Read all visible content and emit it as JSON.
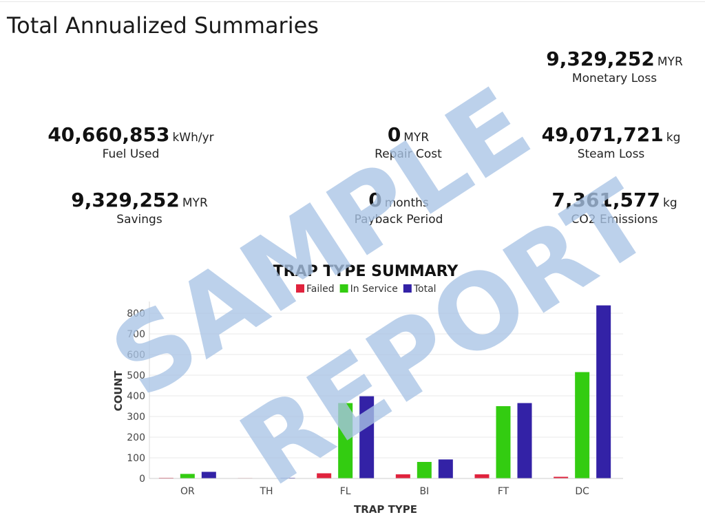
{
  "title": "Total Annualized Summaries",
  "stats": {
    "monetary_loss": {
      "value": "9,329,252",
      "unit": "MYR",
      "label": "Monetary Loss"
    },
    "fuel_used": {
      "value": "40,660,853",
      "unit": "kWh/yr",
      "label": "Fuel Used"
    },
    "repair_cost": {
      "value": "0",
      "unit": "MYR",
      "label": "Repair Cost"
    },
    "steam_loss": {
      "value": "49,071,721",
      "unit": "kg",
      "label": "Steam Loss"
    },
    "savings": {
      "value": "9,329,252",
      "unit": "MYR",
      "label": "Savings"
    },
    "payback_period": {
      "value": "0",
      "unit": "months",
      "label": "Payback Period"
    },
    "co2_emissions": {
      "value": "7,361,577",
      "unit": "kg",
      "label": "CO2 Emissions"
    }
  },
  "watermark": {
    "line1": "SAMPLE",
    "line2": "REPORT",
    "color": "#a9c4e6"
  },
  "chart_data": {
    "type": "bar",
    "title": "TRAP TYPE SUMMARY",
    "xlabel": "TRAP TYPE",
    "ylabel": "COUNT",
    "categories": [
      "OR",
      "TH",
      "FL",
      "BI",
      "FT",
      "DC"
    ],
    "series": [
      {
        "name": "Failed",
        "color": "#e0233d",
        "values": [
          3,
          2,
          25,
          20,
          20,
          8
        ]
      },
      {
        "name": "In Service",
        "color": "#33cc11",
        "values": [
          22,
          1,
          365,
          80,
          350,
          515
        ]
      },
      {
        "name": "Total",
        "color": "#3322a6",
        "values": [
          32,
          3,
          398,
          92,
          365,
          838
        ]
      }
    ],
    "ylim": [
      0,
      850
    ],
    "yticks": [
      0,
      100,
      200,
      300,
      400,
      500,
      600,
      700,
      800
    ],
    "grid": true,
    "legend_position": "top-center"
  }
}
